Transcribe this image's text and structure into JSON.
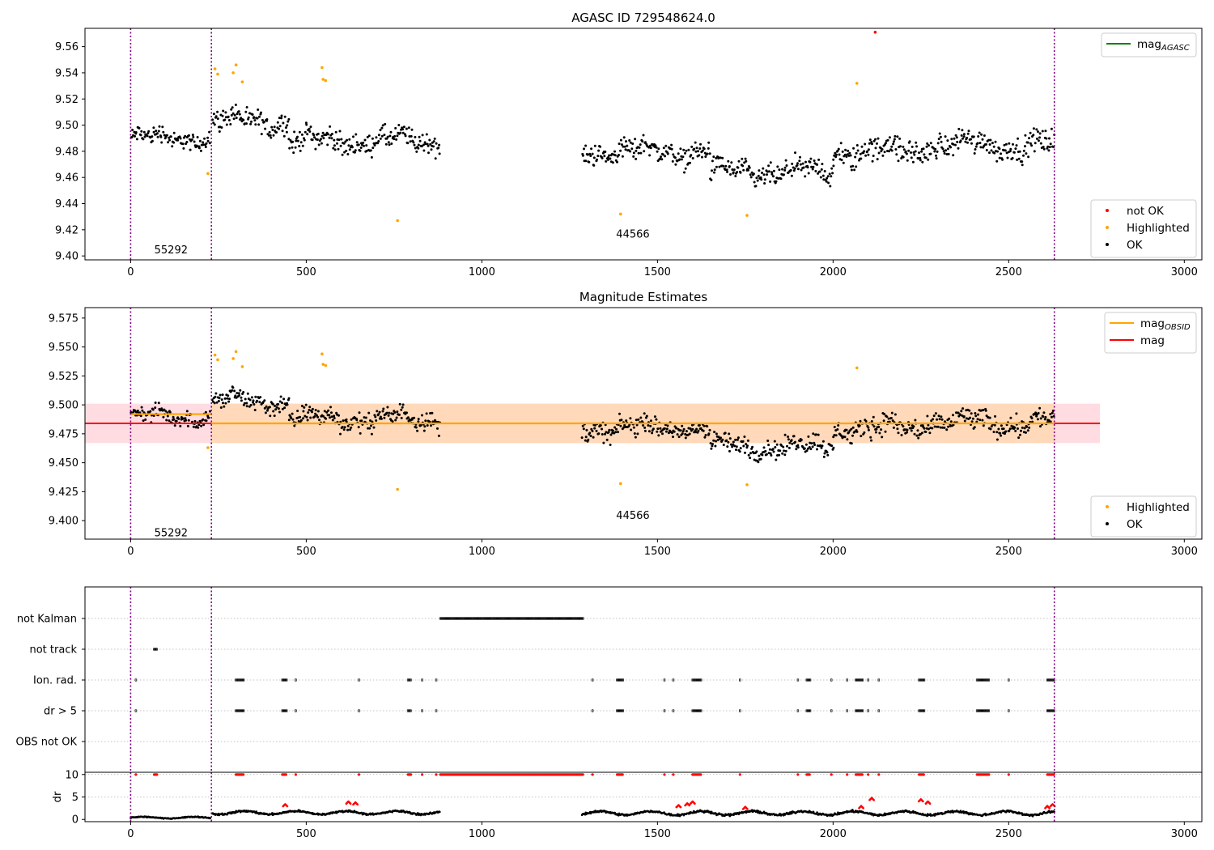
{
  "colors": {
    "ok": "#000000",
    "highlighted": "#ffa500",
    "not_ok": "#ff0000",
    "mag_agasc": "#008000",
    "mag_obsid": "#ffa500",
    "mag": "#ff0000",
    "obsid_boundary": "#800080",
    "band_mag": "#ffc0cb",
    "band_obsid": "#ffd8b0"
  },
  "chart_data": [
    {
      "type": "scatter",
      "title": "AGASC ID 729548624.0",
      "xlabel": "",
      "ylabel": "",
      "xlim": [
        -130,
        3050
      ],
      "ylim": [
        9.397,
        9.574
      ],
      "xticks": [
        0,
        500,
        1000,
        1500,
        2000,
        2500,
        3000
      ],
      "yticks": [
        9.4,
        9.42,
        9.44,
        9.46,
        9.48,
        9.5,
        9.52,
        9.54,
        9.56
      ],
      "ytick_decimals": 2,
      "obsid_boundaries": [
        0,
        230,
        2630
      ],
      "obsid_labels": [
        {
          "text": "55292",
          "x": 115,
          "y": 9.405
        },
        {
          "text": "44566",
          "x": 1430,
          "y": 9.417
        }
      ],
      "series_segments": [
        {
          "x": [
            0,
            225
          ],
          "center": 9.49,
          "spread": 0.01
        },
        {
          "x": [
            232,
            450
          ],
          "center": 9.503,
          "spread": 0.012
        },
        {
          "x": [
            450,
            880
          ],
          "center": 9.488,
          "spread": 0.012
        },
        {
          "x": [
            1285,
            1650
          ],
          "center": 9.48,
          "spread": 0.012
        },
        {
          "x": [
            1650,
            2000
          ],
          "center": 9.464,
          "spread": 0.012
        },
        {
          "x": [
            2000,
            2250
          ],
          "center": 9.48,
          "spread": 0.014
        },
        {
          "x": [
            2250,
            2630
          ],
          "center": 9.485,
          "spread": 0.013
        }
      ],
      "highlighted_points": [
        [
          240,
          9.543
        ],
        [
          248,
          9.539
        ],
        [
          292,
          9.54
        ],
        [
          300,
          9.546
        ],
        [
          318,
          9.533
        ],
        [
          545,
          9.544
        ],
        [
          548,
          9.535
        ],
        [
          555,
          9.534
        ],
        [
          760,
          9.427
        ],
        [
          1395,
          9.432
        ],
        [
          1755,
          9.431
        ],
        [
          2068,
          9.532
        ],
        [
          220,
          9.463
        ]
      ],
      "not_ok_points": [
        [
          2120,
          9.571
        ]
      ],
      "legend_top": [
        {
          "label": "mag",
          "sub": "AGASC",
          "style": "line",
          "color_key": "mag_agasc"
        }
      ],
      "legend_bottom": [
        {
          "label": "not OK",
          "style": "dot",
          "color_key": "not_ok"
        },
        {
          "label": "Highlighted",
          "style": "dot",
          "color_key": "highlighted"
        },
        {
          "label": "OK",
          "style": "dot",
          "color_key": "ok"
        }
      ]
    },
    {
      "type": "scatter",
      "title": "Magnitude Estimates",
      "xlabel": "",
      "ylabel": "",
      "xlim": [
        -130,
        3050
      ],
      "ylim": [
        9.384,
        9.584
      ],
      "xticks": [
        0,
        500,
        1000,
        1500,
        2000,
        2500,
        3000
      ],
      "yticks": [
        9.4,
        9.425,
        9.45,
        9.475,
        9.5,
        9.525,
        9.55,
        9.575
      ],
      "ytick_decimals": 3,
      "obsid_boundaries": [
        0,
        230,
        2630
      ],
      "obsid_labels": [
        {
          "text": "55292",
          "x": 115,
          "y": 9.39
        },
        {
          "text": "44566",
          "x": 1430,
          "y": 9.405
        }
      ],
      "mag": {
        "value": 9.484,
        "band": [
          9.467,
          9.501
        ],
        "x": [
          -130,
          2760
        ]
      },
      "mag_obsid": [
        {
          "x": [
            0,
            230
          ],
          "value": 9.492
        },
        {
          "x": [
            230,
            2630
          ],
          "value": 9.484
        }
      ],
      "obsid_band": {
        "x": [
          230,
          2630
        ],
        "band": [
          9.467,
          9.501
        ]
      },
      "legend_top": [
        {
          "label": "mag",
          "sub": "OBSID",
          "style": "line",
          "color_key": "mag_obsid"
        },
        {
          "label": "mag",
          "sub": "",
          "style": "line",
          "color_key": "mag"
        }
      ],
      "legend_bottom": [
        {
          "label": "Highlighted",
          "style": "dot",
          "color_key": "highlighted"
        },
        {
          "label": "OK",
          "style": "dot",
          "color_key": "ok"
        }
      ]
    },
    {
      "type": "scatter",
      "title": "",
      "xlabel": "",
      "ylabel": "",
      "xlim": [
        -130,
        3050
      ],
      "flag_categories": [
        "not Kalman",
        "not track",
        "Ion. rad.",
        "dr > 5",
        "OBS not OK"
      ],
      "flag_ranges": {
        "not Kalman": [
          [
            882,
            1290
          ]
        ],
        "not track": [
          [
            67,
            75
          ]
        ],
        "Ion. rad.": [
          [
            15,
            15
          ],
          [
            300,
            322
          ],
          [
            432,
            445
          ],
          [
            470,
            470
          ],
          [
            650,
            650
          ],
          [
            790,
            798
          ],
          [
            830,
            830
          ],
          [
            870,
            870
          ],
          [
            1315,
            1315
          ],
          [
            1385,
            1402
          ],
          [
            1520,
            1520
          ],
          [
            1545,
            1545
          ],
          [
            1600,
            1625
          ],
          [
            1735,
            1735
          ],
          [
            1900,
            1900
          ],
          [
            1925,
            1935
          ],
          [
            1995,
            1995
          ],
          [
            2040,
            2040
          ],
          [
            2065,
            2085
          ],
          [
            2100,
            2100
          ],
          [
            2130,
            2130
          ],
          [
            2245,
            2260
          ],
          [
            2410,
            2445
          ],
          [
            2500,
            2500
          ],
          [
            2610,
            2630
          ]
        ],
        "dr > 5": [
          [
            15,
            15
          ],
          [
            300,
            322
          ],
          [
            432,
            445
          ],
          [
            470,
            470
          ],
          [
            650,
            650
          ],
          [
            790,
            798
          ],
          [
            830,
            830
          ],
          [
            870,
            870
          ],
          [
            1315,
            1315
          ],
          [
            1385,
            1402
          ],
          [
            1520,
            1520
          ],
          [
            1545,
            1545
          ],
          [
            1600,
            1625
          ],
          [
            1735,
            1735
          ],
          [
            1900,
            1900
          ],
          [
            1925,
            1935
          ],
          [
            1995,
            1995
          ],
          [
            2040,
            2040
          ],
          [
            2065,
            2085
          ],
          [
            2100,
            2100
          ],
          [
            2130,
            2130
          ],
          [
            2245,
            2260
          ],
          [
            2410,
            2445
          ],
          [
            2500,
            2500
          ],
          [
            2610,
            2630
          ]
        ],
        "OBS not OK": []
      }
    },
    {
      "type": "scatter",
      "title": "",
      "xlabel": "",
      "ylabel": "dr",
      "xlim": [
        -130,
        3050
      ],
      "ylim": [
        -0.5,
        10.5
      ],
      "xticks": [
        0,
        500,
        1000,
        1500,
        2000,
        2500,
        3000
      ],
      "yticks": [
        0,
        5,
        10
      ],
      "ytick_decimals": 0,
      "clipped_value": 10,
      "segments": [
        {
          "x": [
            0,
            228
          ],
          "center": 0.4,
          "spread": 0.3
        },
        {
          "x": [
            232,
            880
          ],
          "center": 1.5,
          "spread": 0.6
        },
        {
          "x": [
            1285,
            2630
          ],
          "center": 1.4,
          "spread": 0.7
        }
      ],
      "excursions": [
        [
          440,
          3.4
        ],
        [
          620,
          4.0
        ],
        [
          640,
          3.8
        ],
        [
          1560,
          3.2
        ],
        [
          1585,
          3.6
        ],
        [
          1600,
          4.0
        ],
        [
          1750,
          2.8
        ],
        [
          2080,
          3.0
        ],
        [
          2110,
          4.8
        ],
        [
          2250,
          4.5
        ],
        [
          2270,
          4.0
        ],
        [
          2610,
          3.0
        ],
        [
          2625,
          3.4
        ]
      ]
    }
  ]
}
